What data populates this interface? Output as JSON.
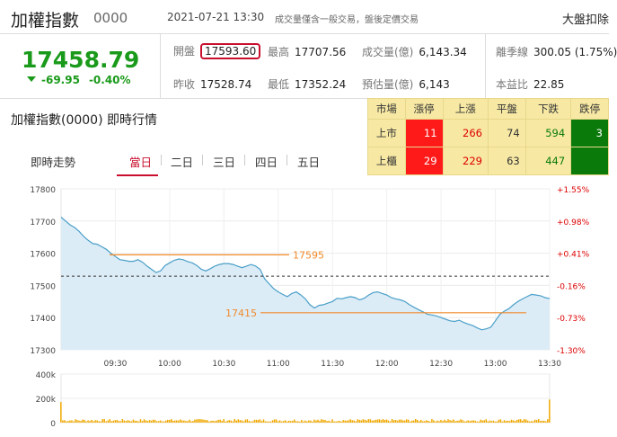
{
  "header": {
    "title": "加權指數",
    "code": "0000",
    "datetime": "2021-07-21 13:30",
    "note": "成交量僅含一般交易，盤後定價交易",
    "right_text": "大盤扣除"
  },
  "quote": {
    "price": "17458.79",
    "change": "-69.95",
    "change_pct": "-0.40%",
    "open_label": "開盤",
    "open_value": "17593.60",
    "high_label": "最高",
    "high_value": "17707.56",
    "volume_label": "成交量(億)",
    "volume_value": "6,143.34",
    "ex_label": "離季線",
    "ex_value": "300.05 (1.75%)",
    "prev_label": "昨收",
    "prev_value": "17528.74",
    "low_label": "最低",
    "low_value": "17352.24",
    "est_label": "預估量(億)",
    "est_value": "6,143",
    "pe_label": "本益比",
    "pe_value": "22.85"
  },
  "section_title": "加權指數(0000) 即時行情",
  "breadth": {
    "headers": [
      "市場",
      "漲停",
      "上漲",
      "平盤",
      "下跌",
      "跌停"
    ],
    "rows": [
      {
        "market": "上市",
        "limit_up": "11",
        "up": "266",
        "flat": "74",
        "down": "594",
        "limit_down": "3"
      },
      {
        "market": "上櫃",
        "limit_up": "29",
        "up": "229",
        "flat": "63",
        "down": "447",
        "limit_down": ""
      }
    ]
  },
  "tabs": {
    "label": "即時走勢",
    "items": [
      "當日",
      "二日",
      "三日",
      "四日",
      "五日"
    ],
    "active": "當日"
  },
  "chart_data": {
    "type": "area",
    "x_ticks": [
      "09:30",
      "10:00",
      "10:30",
      "11:00",
      "11:30",
      "12:00",
      "12:30",
      "13:00",
      "13:30"
    ],
    "y_ticks_left": [
      "17800",
      "17700",
      "17600",
      "17500",
      "17400",
      "17300"
    ],
    "y_ticks_right": [
      "+1.55%",
      "+0.98%",
      "+0.41%",
      "-0.16%",
      "-0.73%",
      "-1.30%"
    ],
    "ylim": [
      17300,
      17800
    ],
    "prev_close": 17528.74,
    "annotations": [
      {
        "label": "17595",
        "value": 17595
      },
      {
        "label": "17415",
        "value": 17415
      }
    ],
    "colors": {
      "line": "#4a9fc8",
      "fill": "#dcecf7",
      "annot": "#f08a2c",
      "volume": "#f0a800",
      "right_axis": "#d00"
    },
    "series": [
      {
        "values": [
          [
            0,
            17712
          ],
          [
            5,
            17700
          ],
          [
            10,
            17688
          ],
          [
            15,
            17680
          ],
          [
            20,
            17668
          ],
          [
            25,
            17652
          ],
          [
            30,
            17640
          ],
          [
            35,
            17630
          ],
          [
            40,
            17628
          ],
          [
            45,
            17620
          ],
          [
            50,
            17612
          ],
          [
            55,
            17600
          ],
          [
            60,
            17590
          ],
          [
            65,
            17580
          ],
          [
            70,
            17578
          ],
          [
            75,
            17575
          ],
          [
            80,
            17575
          ],
          [
            85,
            17580
          ],
          [
            90,
            17572
          ],
          [
            95,
            17560
          ],
          [
            100,
            17550
          ],
          [
            105,
            17540
          ],
          [
            110,
            17545
          ],
          [
            115,
            17562
          ],
          [
            120,
            17570
          ],
          [
            125,
            17578
          ],
          [
            130,
            17582
          ],
          [
            135,
            17580
          ],
          [
            140,
            17574
          ],
          [
            145,
            17570
          ],
          [
            150,
            17562
          ],
          [
            155,
            17550
          ],
          [
            160,
            17545
          ],
          [
            165,
            17552
          ],
          [
            170,
            17560
          ],
          [
            175,
            17565
          ],
          [
            180,
            17568
          ],
          [
            185,
            17568
          ],
          [
            190,
            17565
          ],
          [
            195,
            17560
          ],
          [
            200,
            17555
          ],
          [
            205,
            17560
          ],
          [
            210,
            17565
          ],
          [
            215,
            17560
          ],
          [
            220,
            17550
          ],
          [
            225,
            17520
          ],
          [
            230,
            17505
          ],
          [
            235,
            17490
          ],
          [
            240,
            17480
          ],
          [
            245,
            17472
          ],
          [
            250,
            17465
          ],
          [
            255,
            17475
          ],
          [
            260,
            17480
          ],
          [
            265,
            17470
          ],
          [
            270,
            17458
          ],
          [
            275,
            17440
          ],
          [
            280,
            17430
          ],
          [
            285,
            17438
          ],
          [
            290,
            17440
          ],
          [
            295,
            17445
          ],
          [
            300,
            17450
          ],
          [
            305,
            17460
          ],
          [
            310,
            17458
          ],
          [
            315,
            17462
          ],
          [
            320,
            17465
          ],
          [
            325,
            17462
          ],
          [
            330,
            17455
          ],
          [
            335,
            17460
          ],
          [
            340,
            17470
          ],
          [
            345,
            17478
          ],
          [
            350,
            17480
          ],
          [
            355,
            17475
          ],
          [
            360,
            17470
          ],
          [
            365,
            17462
          ],
          [
            370,
            17458
          ],
          [
            375,
            17455
          ],
          [
            380,
            17450
          ],
          [
            385,
            17440
          ],
          [
            390,
            17432
          ],
          [
            395,
            17425
          ],
          [
            400,
            17418
          ],
          [
            405,
            17410
          ],
          [
            410,
            17408
          ],
          [
            415,
            17405
          ],
          [
            420,
            17400
          ],
          [
            425,
            17395
          ],
          [
            430,
            17390
          ],
          [
            435,
            17388
          ],
          [
            440,
            17392
          ],
          [
            445,
            17385
          ],
          [
            450,
            17380
          ],
          [
            455,
            17375
          ],
          [
            460,
            17368
          ],
          [
            465,
            17362
          ],
          [
            470,
            17365
          ],
          [
            475,
            17370
          ],
          [
            480,
            17390
          ],
          [
            485,
            17410
          ],
          [
            490,
            17420
          ],
          [
            495,
            17428
          ],
          [
            500,
            17440
          ],
          [
            505,
            17450
          ],
          [
            510,
            17458
          ],
          [
            515,
            17465
          ],
          [
            520,
            17472
          ],
          [
            525,
            17470
          ],
          [
            530,
            17468
          ],
          [
            535,
            17462
          ],
          [
            540,
            17459
          ]
        ]
      }
    ],
    "volume_ticks": [
      "400k",
      "200k",
      "0"
    ],
    "volume_ylim": [
      0,
      400000
    ]
  }
}
